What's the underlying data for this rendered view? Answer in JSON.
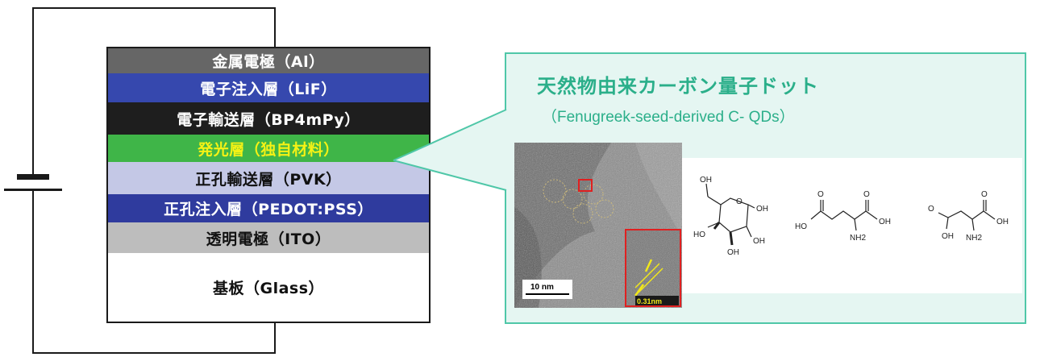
{
  "device_stack": {
    "layers": [
      {
        "label": "金属電極（Al）",
        "bg": "#666666",
        "color": "#ffffff"
      },
      {
        "label": "電子注入層（LiF）",
        "bg": "#3648ae",
        "color": "#ffffff"
      },
      {
        "label": "電子輸送層（BP4mPy）",
        "bg": "#1e1e1e",
        "color": "#ffffff"
      },
      {
        "label": "発光層（独自材料）",
        "bg": "#3fb548",
        "color": "#f5f215"
      },
      {
        "label": "正孔輸送層（PVK）",
        "bg": "#c4c8e6",
        "color": "#111111"
      },
      {
        "label": "正孔注入層（PEDOT:PSS）",
        "bg": "#2f3b9e",
        "color": "#ffffff"
      },
      {
        "label": "透明電極（ITO）",
        "bg": "#bdbdbd",
        "color": "#111111"
      },
      {
        "label": "基板（Glass）",
        "bg": "#ffffff",
        "color": "#111111"
      }
    ]
  },
  "panel": {
    "title": "天然物由来カーボン量子ドット",
    "subtitle": "（Fenugreek-seed-derived C- QDs）",
    "accent": "#2baf8a"
  },
  "tem_image": {
    "scale_bar": "10 nm",
    "lattice_spacing": "0.31nm"
  },
  "molecules": {
    "oh": "OH",
    "ho": "HO",
    "o": "O",
    "nh2": "NH2"
  }
}
